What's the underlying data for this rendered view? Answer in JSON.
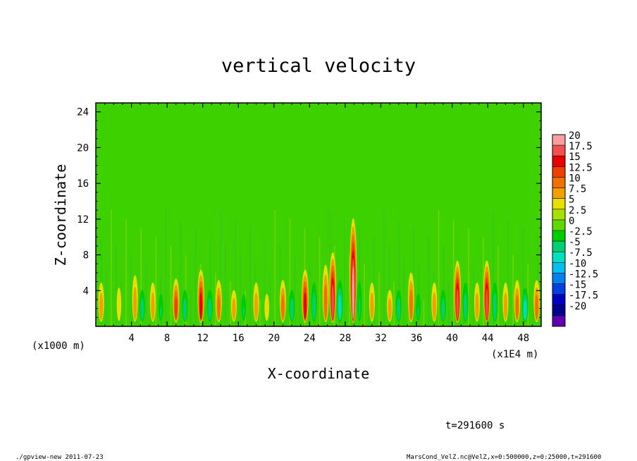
{
  "chart_data": {
    "type": "heatmap",
    "title": "vertical velocity",
    "xlabel": "X-coordinate",
    "ylabel": "Z-coordinate",
    "x_unit_left": "(x1000 m)",
    "x_unit_right": "(x1E4 m)",
    "x_ticks": [
      "4",
      "8",
      "12",
      "16",
      "20",
      "24",
      "28",
      "32",
      "36",
      "40",
      "44",
      "48"
    ],
    "x_tick_values": [
      4,
      8,
      12,
      16,
      20,
      24,
      28,
      32,
      36,
      40,
      44,
      48
    ],
    "xlim": [
      0,
      50
    ],
    "y_ticks": [
      "4",
      "8",
      "12",
      "16",
      "20",
      "24"
    ],
    "y_tick_values": [
      4,
      8,
      12,
      16,
      20,
      24
    ],
    "ylim": [
      0,
      25
    ],
    "colorbar": {
      "labels": [
        "20",
        "17.5",
        "15",
        "12.5",
        "10",
        "7.5",
        "5",
        "2.5",
        "0",
        "-2.5",
        "-5",
        "-7.5",
        "-10",
        "-12.5",
        "-15",
        "-17.5",
        "-20"
      ],
      "colors": [
        "#f7a0a0",
        "#f05050",
        "#e80000",
        "#f04000",
        "#f07000",
        "#f0a000",
        "#e8e000",
        "#a8e000",
        "#60d800",
        "#00cc00",
        "#00d070",
        "#00e0c0",
        "#00c0f0",
        "#0080f0",
        "#0040e0",
        "#0000c0",
        "#000090",
        "#6000b0"
      ]
    },
    "background_value": 0,
    "features": [
      {
        "x": 0.6,
        "z_top": 6,
        "sign": 1,
        "amp": 6
      },
      {
        "x": 2.6,
        "z_top": 6,
        "sign": 1,
        "amp": 5
      },
      {
        "x": 4.4,
        "z_top": 7,
        "sign": 1,
        "amp": 7
      },
      {
        "x": 5.2,
        "z_top": 5,
        "sign": -1,
        "amp": 6
      },
      {
        "x": 6.4,
        "z_top": 6,
        "sign": 1,
        "amp": 6
      },
      {
        "x": 7.3,
        "z_top": 5,
        "sign": -1,
        "amp": 5
      },
      {
        "x": 9.0,
        "z_top": 6,
        "sign": 1,
        "amp": 12
      },
      {
        "x": 10.0,
        "z_top": 5,
        "sign": -1,
        "amp": 7
      },
      {
        "x": 11.8,
        "z_top": 7,
        "sign": 1,
        "amp": 14
      },
      {
        "x": 12.8,
        "z_top": 5,
        "sign": -1,
        "amp": 6
      },
      {
        "x": 13.8,
        "z_top": 6,
        "sign": 1,
        "amp": 9
      },
      {
        "x": 15.5,
        "z_top": 5,
        "sign": 1,
        "amp": 6
      },
      {
        "x": 16.6,
        "z_top": 5,
        "sign": -1,
        "amp": 5
      },
      {
        "x": 18.0,
        "z_top": 6,
        "sign": 1,
        "amp": 7
      },
      {
        "x": 19.2,
        "z_top": 5,
        "sign": 1,
        "amp": 5
      },
      {
        "x": 21.0,
        "z_top": 6,
        "sign": 1,
        "amp": 8
      },
      {
        "x": 22.0,
        "z_top": 5,
        "sign": -1,
        "amp": 7
      },
      {
        "x": 23.5,
        "z_top": 7,
        "sign": 1,
        "amp": 15
      },
      {
        "x": 24.5,
        "z_top": 6,
        "sign": -1,
        "amp": 6
      },
      {
        "x": 25.8,
        "z_top": 8,
        "sign": 1,
        "amp": 9
      },
      {
        "x": 26.6,
        "z_top": 9,
        "sign": 1,
        "amp": 16
      },
      {
        "x": 27.4,
        "z_top": 6,
        "sign": -1,
        "amp": 8
      },
      {
        "x": 28.9,
        "z_top": 13,
        "sign": 1,
        "amp": 18
      },
      {
        "x": 29.6,
        "z_top": 7,
        "sign": -1,
        "amp": 5
      },
      {
        "x": 31.0,
        "z_top": 6,
        "sign": 1,
        "amp": 6
      },
      {
        "x": 33.0,
        "z_top": 5,
        "sign": 1,
        "amp": 6
      },
      {
        "x": 34.0,
        "z_top": 5,
        "sign": -1,
        "amp": 6
      },
      {
        "x": 35.4,
        "z_top": 7,
        "sign": 1,
        "amp": 10
      },
      {
        "x": 36.2,
        "z_top": 5,
        "sign": -1,
        "amp": 5
      },
      {
        "x": 38.0,
        "z_top": 6,
        "sign": 1,
        "amp": 6
      },
      {
        "x": 39.0,
        "z_top": 5,
        "sign": -1,
        "amp": 6
      },
      {
        "x": 40.6,
        "z_top": 8,
        "sign": 1,
        "amp": 17
      },
      {
        "x": 41.5,
        "z_top": 6,
        "sign": -1,
        "amp": 6
      },
      {
        "x": 42.8,
        "z_top": 6,
        "sign": 1,
        "amp": 7
      },
      {
        "x": 43.9,
        "z_top": 8,
        "sign": 1,
        "amp": 16
      },
      {
        "x": 44.8,
        "z_top": 6,
        "sign": -1,
        "amp": 6
      },
      {
        "x": 46.0,
        "z_top": 6,
        "sign": 1,
        "amp": 7
      },
      {
        "x": 47.3,
        "z_top": 6,
        "sign": 1,
        "amp": 9
      },
      {
        "x": 48.2,
        "z_top": 5,
        "sign": -1,
        "amp": 8
      },
      {
        "x": 49.5,
        "z_top": 6,
        "sign": 1,
        "amp": 8
      }
    ]
  },
  "time_label": "t=291600 s",
  "footer_left": "./gpview-new   2011-07-23",
  "footer_right": "MarsCond_VelZ.nc@VelZ,x=0:500000,z=0:25000,t=291600"
}
